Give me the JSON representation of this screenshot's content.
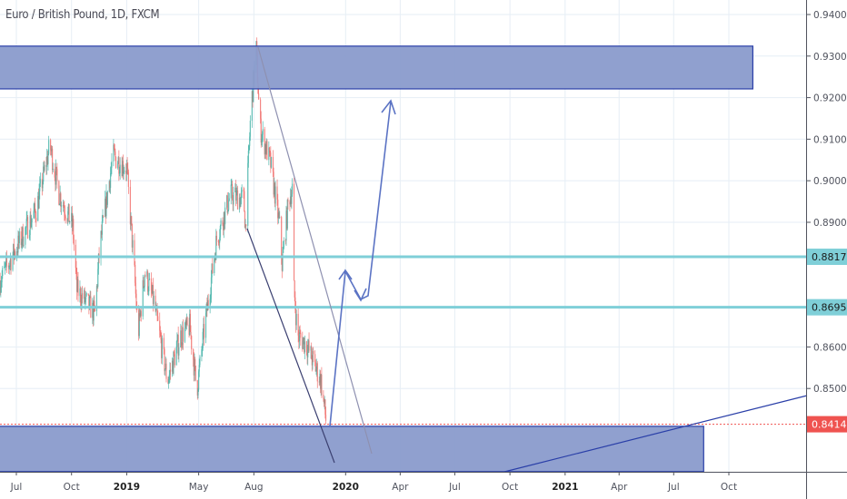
{
  "header": {
    "title": "Euro / British Pound, 1D, FXCM"
  },
  "colors": {
    "up": "#26a69a",
    "down": "#ef5350",
    "zone": "#8a9bcc",
    "zone_border": "#2a3fa8",
    "level": "#7fcfd8",
    "level_label": "#7fcfd8",
    "current_label": "#ef5350",
    "drawing": "#5b73c4",
    "trend_dark": "#3a3f70",
    "trend_light": "#8e90b0"
  },
  "chart_data": {
    "type": "candlestick",
    "symbol": "Euro / British Pound",
    "interval": "1D",
    "source": "FXCM",
    "grid": true,
    "ylim": [
      0.825,
      0.944
    ],
    "xlim": [
      "2018-06-04",
      "2021-12-31"
    ],
    "y_ticks": [
      "0.94000",
      "0.93000",
      "0.92000",
      "0.91000",
      "0.90000",
      "0.89000",
      "0.86000",
      "0.85000"
    ],
    "y_tick_values": [
      0.94,
      0.93,
      0.92,
      0.91,
      0.9,
      0.89,
      0.86,
      0.85
    ],
    "x_ticks": [
      {
        "label": "Jul",
        "date": "2018-07-01",
        "bold": false
      },
      {
        "label": "Oct",
        "date": "2018-10-01",
        "bold": false
      },
      {
        "label": "2019",
        "date": "2019-01-01",
        "bold": true
      },
      {
        "label": "May",
        "date": "2019-05-01",
        "bold": false
      },
      {
        "label": "Aug",
        "date": "2019-08-01",
        "bold": false
      },
      {
        "label": "2020",
        "date": "2020-01-01",
        "bold": true
      },
      {
        "label": "Apr",
        "date": "2020-04-01",
        "bold": false
      },
      {
        "label": "Jul",
        "date": "2020-07-01",
        "bold": false
      },
      {
        "label": "Oct",
        "date": "2020-10-01",
        "bold": false
      },
      {
        "label": "2021",
        "date": "2021-01-01",
        "bold": true
      },
      {
        "label": "Apr",
        "date": "2021-04-01",
        "bold": false
      },
      {
        "label": "Jul",
        "date": "2021-07-01",
        "bold": false
      },
      {
        "label": "Oct",
        "date": "2021-10-01",
        "bold": false
      }
    ],
    "price_path": [
      [
        "2018-06-04",
        0.876
      ],
      [
        "2018-07-04",
        0.8846
      ],
      [
        "2018-08-03",
        0.893
      ],
      [
        "2018-08-26",
        0.9085
      ],
      [
        "2018-09-10",
        0.897
      ],
      [
        "2018-10-03",
        0.889
      ],
      [
        "2018-10-10",
        0.8736
      ],
      [
        "2018-11-09",
        0.868
      ],
      [
        "2018-11-17",
        0.884
      ],
      [
        "2018-12-09",
        0.906
      ],
      [
        "2019-01-01",
        0.903
      ],
      [
        "2019-01-13",
        0.88
      ],
      [
        "2019-01-20",
        0.8627
      ],
      [
        "2019-01-31",
        0.878
      ],
      [
        "2019-02-15",
        0.871
      ],
      [
        "2019-03-10",
        0.8518
      ],
      [
        "2019-04-01",
        0.8627
      ],
      [
        "2019-04-16",
        0.865
      ],
      [
        "2019-04-28",
        0.8496
      ],
      [
        "2019-05-09",
        0.8627
      ],
      [
        "2019-05-31",
        0.886
      ],
      [
        "2019-06-23",
        0.8966
      ],
      [
        "2019-07-15",
        0.8955
      ],
      [
        "2019-07-18",
        0.889
      ],
      [
        "2019-07-27",
        0.917
      ],
      [
        "2019-08-05",
        0.9315
      ],
      [
        "2019-08-11",
        0.913
      ],
      [
        "2019-08-29",
        0.904
      ],
      [
        "2019-09-13",
        0.889
      ],
      [
        "2019-09-17",
        0.88
      ],
      [
        "2019-09-28",
        0.8955
      ],
      [
        "2019-10-04",
        0.898
      ],
      [
        "2019-10-07",
        0.8736
      ],
      [
        "2019-10-13",
        0.8627
      ],
      [
        "2019-10-28",
        0.8605
      ],
      [
        "2019-11-12",
        0.855
      ],
      [
        "2019-11-21",
        0.8518
      ],
      [
        "2019-11-30",
        0.8414
      ]
    ],
    "levels": [
      {
        "label": "0.88170",
        "value": 0.8817,
        "kind": "support-resistance"
      },
      {
        "label": "0.86955",
        "value": 0.86955,
        "kind": "support-resistance"
      },
      {
        "label": "0.84140",
        "value": 0.8414,
        "kind": "last-price"
      }
    ],
    "zones": [
      {
        "top": 0.9324,
        "bottom": 0.9221,
        "end": "2021-11-10"
      },
      {
        "top": 0.8409,
        "bottom": 0.83,
        "end": "2021-08-20"
      }
    ]
  }
}
